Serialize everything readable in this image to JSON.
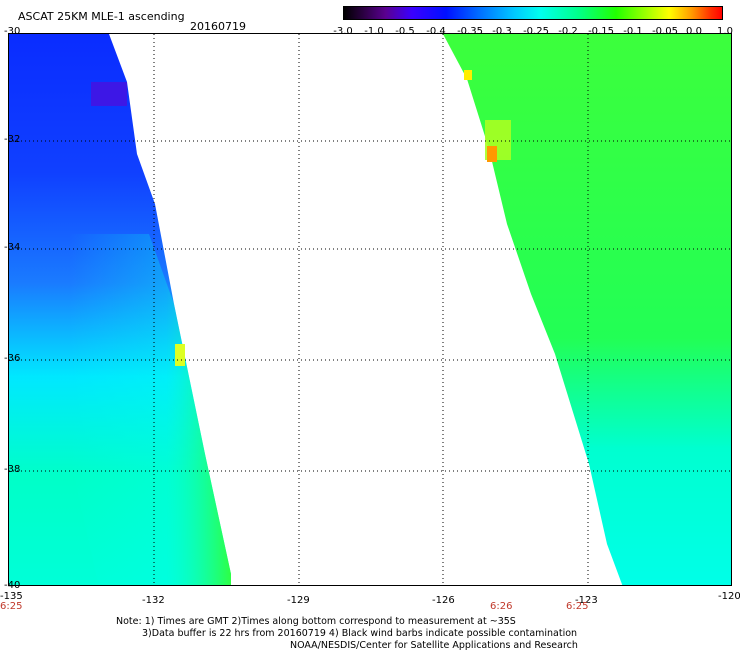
{
  "header": {
    "title": "ASCAT 25KM MLE-1 ascending",
    "date": "20160719"
  },
  "colorbar": {
    "labels": [
      "-3.0",
      "-1.0",
      "-0.5",
      "-0.4",
      "-0.35",
      "-0.3",
      "-0.25",
      "-0.2",
      "-0.15",
      "-0.1",
      "-0.05",
      "0.0",
      "1.0"
    ],
    "colors": [
      "#000000",
      "#5a0090",
      "#0010ff",
      "#00c8ff",
      "#00ff8a",
      "#22ff00",
      "#ffff00",
      "#ff0000"
    ]
  },
  "axes": {
    "y_labels": [
      "-30",
      "-32",
      "-34",
      "-36",
      "-38",
      "-40"
    ],
    "x_labels": [
      "-135",
      "-132",
      "-129",
      "-126",
      "-123",
      "-120"
    ]
  },
  "times": [
    "6:25",
    "6:26",
    "6:25"
  ],
  "notes": [
    "Note: 1) Times are GMT 2)Times along bottom correspond to measurement at ~35S",
    "3)Data buffer is 22 hrs from 20160719 4) Black wind barbs indicate possible contamination",
    "NOAA/NESDIS/Center for Satellite Applications and Research"
  ]
}
